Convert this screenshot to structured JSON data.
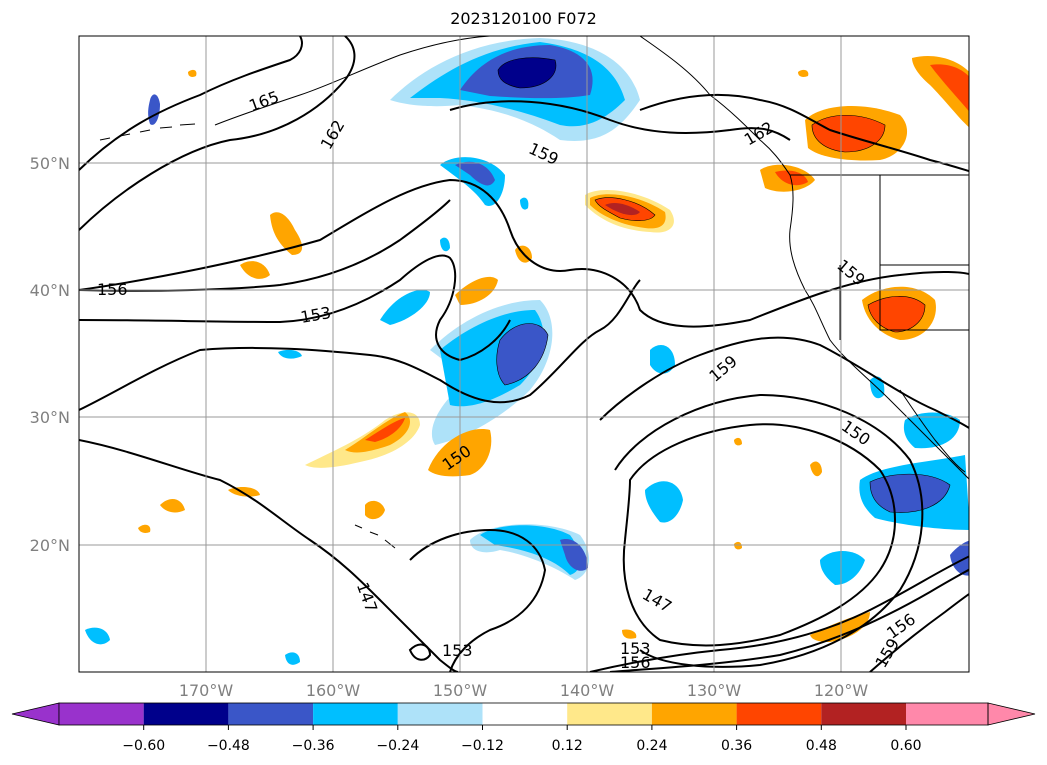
{
  "title": "2023120100 F072",
  "chart_data": {
    "type": "map",
    "title": "2023120100 F072",
    "region": {
      "lon_range": [
        -180,
        -110
      ],
      "lat_range": [
        10,
        60
      ]
    },
    "grid": true,
    "lat_ticks": [
      "20°N",
      "30°N",
      "40°N",
      "50°N"
    ],
    "lon_ticks": [
      "170°W",
      "160°W",
      "150°W",
      "140°W",
      "130°W",
      "120°W"
    ],
    "contour_labels": [
      "165",
      "162",
      "159",
      "156",
      "153",
      "150",
      "147",
      "162",
      "159",
      "159",
      "150",
      "147",
      "153",
      "156",
      "156",
      "159",
      "153"
    ],
    "colorbar": {
      "ticks": [
        "−0.60",
        "−0.48",
        "−0.36",
        "−0.24",
        "−0.12",
        "0.12",
        "0.24",
        "0.36",
        "0.48",
        "0.60"
      ],
      "colors": [
        "#9932cc",
        "#00008b",
        "#3a56c8",
        "#00bfff",
        "#aee2f9",
        "#ffffff",
        "#ffe88a",
        "#ffa500",
        "#ff4500",
        "#b22222",
        "#ff88aa"
      ],
      "extend": "both"
    }
  }
}
